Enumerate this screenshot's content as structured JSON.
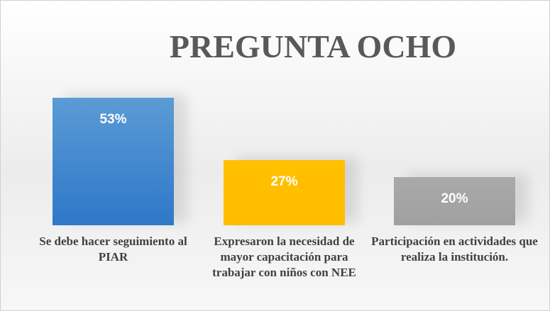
{
  "chart_data": {
    "type": "bar",
    "title": "PREGUNTA OCHO",
    "categories": [
      "Se debe hacer seguimiento al PIAR",
      "Expresaron la necesidad de mayor capacitación para trabajar con niños con NEE",
      "Participación en actividades que realiza la institución."
    ],
    "values": [
      53,
      27,
      20
    ],
    "value_labels": [
      "53%",
      "27%",
      "20%"
    ],
    "colors": [
      "#5b9bd5",
      "#ffc000",
      "#a5a5a5"
    ]
  }
}
